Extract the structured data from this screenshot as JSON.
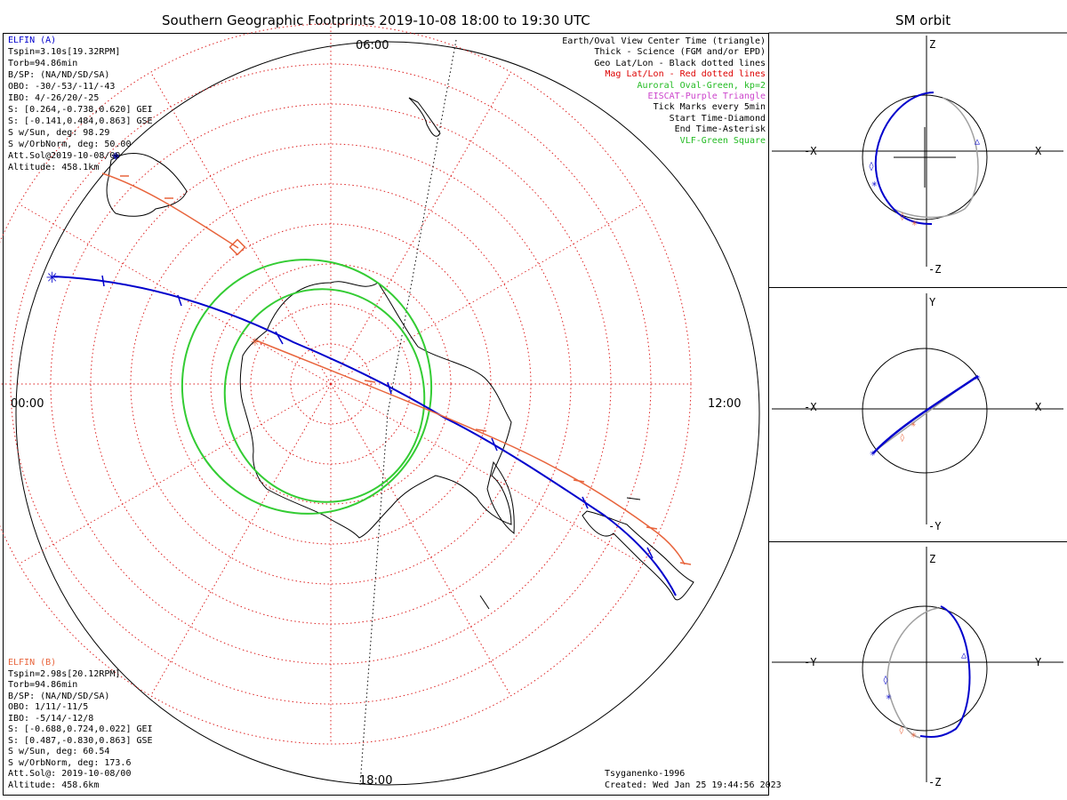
{
  "title": "Southern Geographic Footprints 2019-10-08 18:00 to 19:30 UTC",
  "orbit_title": "SM orbit",
  "colors": {
    "elfin_a": "#0000cc",
    "elfin_b": "#e8643c",
    "grid": "#dd2222",
    "oval": "#33cc33",
    "gray": "#a0a0a0"
  },
  "map": {
    "time_labels": {
      "top": "06:00",
      "left": "00:00",
      "right": "12:00",
      "bottom": "18:00"
    },
    "elfin_a": {
      "name": "ELFIN (A)",
      "lines": [
        "Tspin=3.10s[19.32RPM]",
        "Torb=94.86min",
        "B/SP: (NA/ND/SD/SA)",
        "OBO: -30/-53/-11/-43",
        "IBO: 4/-26/20/-25",
        "S: [0.264,-0.738,0.620] GEI",
        "S: [-0.141,0.484,0.863] GSE",
        "S w/Sun, deg: 98.29",
        "S w/OrbNorm, deg: 50.00",
        "Att.Sol@2019-10-08/00",
        "Altitude: 458.1km"
      ]
    },
    "elfin_b": {
      "name": "ELFIN (B)",
      "lines": [
        "Tspin=2.98s[20.12RPM]",
        "Torb=94.86min",
        "B/SP: (NA/ND/SD/SA)",
        "OBO: 1/11/-11/5",
        "IBO: -5/14/-12/8",
        "S: [-0.688,0.724,0.022] GEI",
        "S: [0.487,-0.830,0.863] GSE",
        "S w/Sun, deg: 60.54",
        "S w/OrbNorm, deg: 173.6",
        "Att.Sol@: 2019-10-08/00",
        "Altitude: 458.6km"
      ]
    },
    "legend": [
      {
        "text": "Earth/Oval View Center Time (triangle)",
        "color": "#000000"
      },
      {
        "text": "Thick - Science (FGM and/or EPD)",
        "color": "#000000"
      },
      {
        "text": "Geo Lat/Lon - Black dotted lines",
        "color": "#000000"
      },
      {
        "text": "Mag Lat/Lon - Red dotted lines",
        "color": "#dd0000"
      },
      {
        "text": "Auroral Oval-Green, kp=2",
        "color": "#22bb22"
      },
      {
        "text": "EISCAT-Purple Triangle",
        "color": "#cc44cc"
      },
      {
        "text": "Tick Marks every 5min",
        "color": "#000000"
      },
      {
        "text": "Start Time-Diamond",
        "color": "#000000"
      },
      {
        "text": "End Time-Asterisk",
        "color": "#000000"
      },
      {
        "text": "VLF-Green Square",
        "color": "#22bb22"
      }
    ],
    "model": "Tsyganenko-1996",
    "created": "Created: Wed Jan 25 19:44:56 2023"
  },
  "orbit_panels": [
    {
      "top": "Z",
      "bottom": "-Z",
      "left": "-X",
      "right": "X"
    },
    {
      "top": "Y",
      "bottom": "-Y",
      "left": "-X",
      "right": "X"
    },
    {
      "top": "Z",
      "bottom": "-Z",
      "left": "-Y",
      "right": "Y"
    }
  ]
}
